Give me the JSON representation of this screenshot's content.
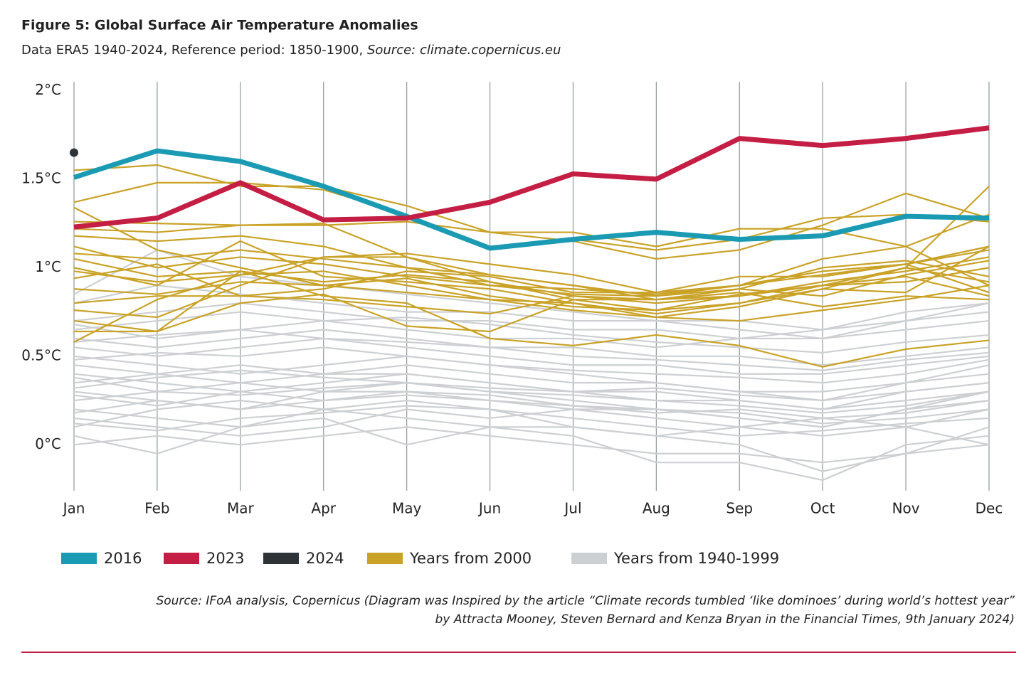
{
  "chart_data": {
    "type": "line",
    "title": "Figure 5: Global Surface Air Temperature Anomalies",
    "subtitle": "Data ERA5 1940-2024, Reference period: 1850-1900, ",
    "subtitle_source": "Source: climate.copernicus.eu",
    "note": [
      "Source: IFoA analysis, Copernicus (Diagram was Inspired by the article “Climate records tumbled ‘like dominoes’ during world’s hottest year”",
      "by Attracta Mooney, Steven Bernard and Kenza Bryan in the Financial Times, 9th January 2024)"
    ],
    "categories": [
      "Jan",
      "Feb",
      "Mar",
      "Apr",
      "May",
      "Jun",
      "Jul",
      "Aug",
      "Sep",
      "Oct",
      "Nov",
      "Dec"
    ],
    "ylim": [
      -0.26,
      2.05
    ],
    "yticks": [
      {
        "value": 0,
        "label": "0°C"
      },
      {
        "value": 0.5,
        "label": "0.5°C"
      },
      {
        "value": 1,
        "label": "1°C"
      },
      {
        "value": 1.5,
        "label": "1.5°C"
      },
      {
        "value": 2,
        "label": "2°C"
      }
    ],
    "groups": [
      {
        "name": "Years from 2000",
        "color": "#c9a227",
        "lines": [
          [
            1.55,
            1.58,
            1.46,
            1.46,
            1.35,
            1.2,
            1.2,
            1.12,
            1.22,
            1.22,
            1.12,
            1.3
          ],
          [
            1.37,
            1.48,
            1.48,
            1.44,
            1.3,
            1.12,
            1.16,
            1.1,
            1.16,
            1.28,
            1.3,
            1.26
          ],
          [
            1.26,
            1.25,
            1.24,
            1.24,
            1.26,
            1.2,
            1.15,
            1.05,
            1.1,
            1.24,
            1.42,
            1.28
          ],
          [
            1.22,
            1.2,
            1.24,
            1.25,
            1.06,
            0.96,
            0.9,
            0.84,
            0.9,
            0.98,
            1.02,
            1.12
          ],
          [
            1.34,
            1.1,
            1.0,
            0.9,
            0.86,
            0.82,
            0.8,
            0.74,
            0.8,
            0.9,
            1.0,
            1.46
          ],
          [
            1.18,
            1.15,
            1.18,
            1.12,
            1.0,
            0.9,
            0.85,
            0.84,
            0.88,
            1.0,
            1.04,
            0.95
          ],
          [
            1.12,
            1.0,
            1.06,
            1.02,
            0.95,
            0.9,
            0.88,
            0.85,
            0.9,
            1.05,
            1.12,
            0.9
          ],
          [
            1.05,
            0.95,
            0.98,
            0.92,
            0.96,
            0.92,
            0.84,
            0.8,
            0.84,
            0.92,
            0.98,
            1.06
          ],
          [
            1.0,
            0.9,
            1.15,
            0.95,
            0.92,
            0.88,
            0.8,
            0.72,
            0.78,
            0.88,
            0.86,
            1.12
          ],
          [
            0.94,
            1.02,
            0.84,
            0.88,
            0.98,
            0.95,
            0.86,
            0.86,
            0.95,
            0.95,
            1.02,
            0.86
          ],
          [
            0.88,
            0.85,
            0.92,
            0.9,
            0.94,
            0.84,
            0.78,
            0.76,
            0.85,
            0.9,
            0.92,
            1.0
          ],
          [
            0.8,
            0.84,
            0.84,
            0.82,
            0.78,
            0.74,
            0.84,
            0.82,
            0.88,
            0.84,
            0.96,
            1.04
          ],
          [
            0.76,
            0.72,
            0.9,
            1.06,
            1.08,
            1.02,
            0.96,
            0.86,
            0.9,
            0.96,
            1.02,
            1.1
          ],
          [
            0.7,
            0.64,
            0.8,
            0.85,
            0.67,
            0.64,
            0.82,
            0.82,
            0.86,
            0.78,
            0.84,
            0.82
          ],
          [
            0.58,
            0.82,
            0.96,
            0.98,
            0.9,
            0.82,
            0.76,
            0.72,
            0.7,
            0.76,
            0.82,
            0.9
          ],
          [
            0.64,
            0.64,
            0.98,
            0.84,
            0.8,
            0.6,
            0.56,
            0.62,
            0.56,
            0.44,
            0.54,
            0.59
          ],
          [
            0.98,
            0.92,
            0.96,
            1.06,
            1.06,
            0.92,
            0.82,
            0.76,
            0.8,
            0.88,
            1.0,
            0.92
          ],
          [
            1.08,
            1.05,
            1.1,
            1.05,
            1.0,
            0.96,
            0.9,
            0.82,
            0.84,
            0.9,
            0.95,
            0.84
          ]
        ]
      },
      {
        "name": "Years from 1940-1999",
        "color": "#cdd0d2",
        "lines": [
          [
            0.05,
            -0.05,
            0.1,
            0.15,
            0.0,
            0.1,
            0.05,
            -0.1,
            -0.1,
            -0.2,
            0.0,
            0.05
          ],
          [
            0.2,
            0.15,
            0.1,
            0.2,
            0.25,
            0.2,
            0.1,
            0.05,
            0.0,
            -0.15,
            -0.05,
            0.1
          ],
          [
            0.3,
            0.25,
            0.2,
            0.3,
            0.3,
            0.25,
            0.2,
            0.15,
            0.1,
            0.05,
            0.1,
            0.2
          ],
          [
            0.4,
            0.35,
            0.3,
            0.35,
            0.4,
            0.35,
            0.3,
            0.3,
            0.25,
            0.2,
            0.3,
            0.35
          ],
          [
            0.1,
            0.2,
            0.25,
            0.2,
            0.15,
            0.1,
            0.1,
            0.05,
            0.1,
            0.15,
            0.1,
            0.0
          ],
          [
            0.15,
            0.1,
            0.05,
            0.1,
            0.2,
            0.15,
            0.2,
            0.2,
            0.15,
            0.1,
            0.2,
            0.25
          ],
          [
            0.5,
            0.45,
            0.4,
            0.45,
            0.5,
            0.45,
            0.4,
            0.35,
            0.3,
            0.3,
            0.35,
            0.4
          ],
          [
            0.55,
            0.5,
            0.55,
            0.6,
            0.55,
            0.5,
            0.45,
            0.45,
            0.4,
            0.4,
            0.45,
            0.5
          ],
          [
            0.6,
            0.55,
            0.6,
            0.65,
            0.6,
            0.55,
            0.55,
            0.5,
            0.5,
            0.45,
            0.5,
            0.55
          ],
          [
            0.65,
            0.7,
            0.75,
            0.7,
            0.65,
            0.6,
            0.6,
            0.55,
            0.6,
            0.6,
            0.65,
            0.7
          ],
          [
            0.7,
            0.75,
            0.8,
            0.75,
            0.7,
            0.7,
            0.65,
            0.65,
            0.6,
            0.65,
            0.7,
            0.75
          ],
          [
            0.8,
            0.9,
            0.85,
            0.8,
            0.75,
            0.75,
            0.7,
            0.7,
            0.65,
            0.6,
            0.7,
            0.8
          ],
          [
            0.85,
            1.1,
            0.95,
            0.9,
            0.85,
            0.8,
            0.75,
            0.7,
            0.7,
            0.65,
            0.75,
            0.8
          ],
          [
            0.25,
            0.3,
            0.35,
            0.3,
            0.35,
            0.3,
            0.25,
            0.2,
            0.15,
            0.1,
            0.2,
            0.3
          ],
          [
            0.35,
            0.4,
            0.45,
            0.4,
            0.4,
            0.35,
            0.3,
            0.25,
            0.25,
            0.2,
            0.25,
            0.3
          ],
          [
            0.45,
            0.4,
            0.35,
            0.4,
            0.45,
            0.4,
            0.35,
            0.35,
            0.3,
            0.25,
            0.35,
            0.45
          ],
          [
            0.0,
            0.05,
            0.0,
            0.05,
            0.1,
            0.05,
            0.0,
            -0.05,
            -0.05,
            -0.1,
            -0.05,
            0.0
          ],
          [
            0.12,
            0.08,
            0.15,
            0.18,
            0.22,
            0.2,
            0.15,
            0.1,
            0.05,
            0.08,
            0.12,
            0.15
          ],
          [
            0.28,
            0.22,
            0.3,
            0.25,
            0.3,
            0.28,
            0.22,
            0.18,
            0.2,
            0.15,
            0.18,
            0.25
          ],
          [
            0.48,
            0.52,
            0.5,
            0.55,
            0.5,
            0.45,
            0.42,
            0.4,
            0.38,
            0.35,
            0.4,
            0.48
          ],
          [
            0.58,
            0.62,
            0.65,
            0.6,
            0.58,
            0.55,
            0.5,
            0.48,
            0.45,
            0.42,
            0.48,
            0.52
          ],
          [
            0.38,
            0.3,
            0.28,
            0.32,
            0.35,
            0.3,
            0.28,
            0.25,
            0.22,
            0.18,
            0.22,
            0.3
          ],
          [
            0.18,
            0.25,
            0.2,
            0.25,
            0.28,
            0.25,
            0.22,
            0.2,
            0.18,
            0.12,
            0.15,
            0.2
          ],
          [
            0.68,
            0.6,
            0.65,
            0.7,
            0.72,
            0.68,
            0.62,
            0.58,
            0.55,
            0.52,
            0.58,
            0.62
          ],
          [
            0.32,
            0.38,
            0.42,
            0.38,
            0.35,
            0.32,
            0.3,
            0.32,
            0.28,
            0.25,
            0.3,
            0.35
          ]
        ]
      }
    ],
    "series": [
      {
        "name": "2016",
        "color": "#1a9bb3",
        "values": [
          1.51,
          1.66,
          1.6,
          1.46,
          1.29,
          1.11,
          1.16,
          1.2,
          1.16,
          1.18,
          1.29,
          1.28
        ]
      },
      {
        "name": "2023",
        "color": "#c41e45",
        "values": [
          1.23,
          1.28,
          1.48,
          1.27,
          1.28,
          1.37,
          1.53,
          1.5,
          1.73,
          1.69,
          1.73,
          1.79
        ]
      },
      {
        "name": "2024",
        "color": "#2e3338",
        "values": [
          1.65,
          null,
          null,
          null,
          null,
          null,
          null,
          null,
          null,
          null,
          null,
          null
        ]
      }
    ]
  }
}
